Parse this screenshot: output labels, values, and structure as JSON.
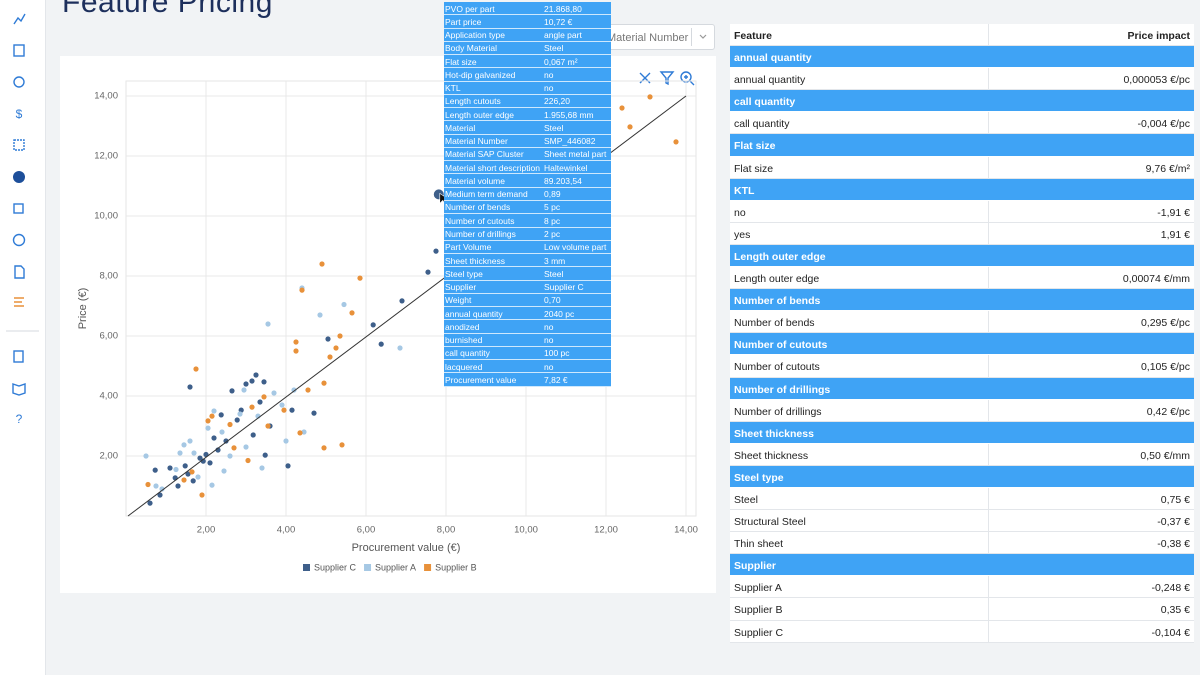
{
  "header": {
    "title": "Feature Pricing",
    "dropdown": "Material Number"
  },
  "chart_data": {
    "type": "scatter",
    "x_label": "Procurement value  (€)",
    "y_label": "Price (€)",
    "xlim": [
      0,
      14.25
    ],
    "ylim": [
      0,
      14.5
    ],
    "grid": true,
    "legend": "bottom",
    "xticks": [
      {
        "value": 2,
        "label": "2,00"
      },
      {
        "value": 4,
        "label": "4,00"
      },
      {
        "value": 6,
        "label": "6,00"
      },
      {
        "value": 8,
        "label": "8,00"
      },
      {
        "value": 10,
        "label": "10,00"
      },
      {
        "value": 12,
        "label": "12,00"
      },
      {
        "value": 14,
        "label": "14,00"
      }
    ],
    "yticks": [
      {
        "value": 2,
        "label": "2,00"
      },
      {
        "value": 4,
        "label": "4,00"
      },
      {
        "value": 6,
        "label": "6,00"
      },
      {
        "value": 8,
        "label": "8,00"
      },
      {
        "value": 10,
        "label": "10,00"
      },
      {
        "value": 12,
        "label": "12,00"
      },
      {
        "value": 14,
        "label": "14,00"
      }
    ],
    "fit_line": {
      "x": [
        0.05,
        14
      ],
      "y": [
        0,
        14
      ],
      "color": "#333333"
    },
    "series": [
      {
        "name": "Supplier C",
        "color": "#3e5f8a",
        "x": [
          7.82,
          7.75,
          7.55,
          6.9,
          6.38,
          6.18,
          1.6,
          3.25,
          3.15,
          3.0,
          3.45,
          2.65,
          2.88,
          2.38,
          1.85,
          1.93,
          1.23,
          0.85,
          0.6,
          0.73,
          1.48,
          1.68,
          2.1,
          2.5,
          2.78,
          3.18,
          3.48,
          4.05,
          4.15,
          4.7,
          1.3,
          1.55,
          2.3,
          2.0,
          3.6,
          1.1,
          2.2,
          3.35,
          5.05
        ],
        "values": [
          10.72,
          8.83,
          8.13,
          7.17,
          5.73,
          6.37,
          4.3,
          4.7,
          4.5,
          4.4,
          4.47,
          4.17,
          3.53,
          3.37,
          1.93,
          1.83,
          1.27,
          0.7,
          0.43,
          1.53,
          1.67,
          1.17,
          1.77,
          2.5,
          3.2,
          2.7,
          2.03,
          1.67,
          3.53,
          3.43,
          1.0,
          1.4,
          2.2,
          2.05,
          3.0,
          1.6,
          2.6,
          3.8,
          5.9
        ]
      },
      {
        "name": "Supplier A",
        "color": "#a6c8e4",
        "x": [
          5.45,
          4.4,
          4.85,
          3.55,
          6.85,
          4.2,
          1.45,
          0.5,
          1.6,
          2.4,
          2.85,
          3.3,
          2.15,
          0.9,
          1.8,
          2.6,
          3.0,
          2.2,
          2.05,
          3.7,
          1.25,
          0.75,
          3.9,
          2.95,
          4.45,
          1.7,
          3.4,
          2.45,
          1.35,
          4.0
        ],
        "values": [
          7.05,
          7.6,
          6.7,
          6.4,
          5.6,
          4.2,
          2.37,
          2.0,
          2.5,
          2.8,
          3.4,
          3.33,
          1.03,
          0.9,
          1.3,
          2.0,
          2.3,
          3.5,
          2.93,
          4.1,
          1.55,
          1.0,
          3.7,
          4.2,
          2.8,
          2.1,
          1.6,
          1.5,
          2.1,
          2.5
        ]
      },
      {
        "name": "Supplier B",
        "color": "#e8913a",
        "x": [
          12.4,
          12.6,
          13.1,
          13.75,
          4.9,
          5.85,
          5.65,
          4.4,
          5.35,
          5.1,
          5.25,
          4.25,
          4.25,
          4.55,
          4.95,
          1.75,
          3.45,
          3.15,
          2.15,
          2.05,
          3.95,
          4.35,
          4.95,
          5.4,
          0.55,
          1.45,
          1.65,
          2.7,
          3.05,
          2.6,
          1.9,
          3.55
        ],
        "values": [
          13.6,
          12.97,
          13.97,
          12.47,
          8.4,
          7.93,
          6.77,
          7.53,
          6.0,
          5.3,
          5.6,
          5.8,
          5.5,
          4.2,
          4.43,
          4.9,
          3.97,
          3.63,
          3.33,
          3.17,
          3.53,
          2.77,
          2.27,
          2.37,
          1.05,
          1.2,
          1.47,
          2.27,
          1.85,
          3.05,
          0.7,
          3.0
        ]
      }
    ]
  },
  "tooltip": {
    "rows": [
      [
        "PVO per part",
        "21.868,80"
      ],
      [
        "Part price",
        "10,72 €"
      ],
      [
        "Application type",
        "angle part"
      ],
      [
        "Body Material",
        "Steel"
      ],
      [
        "Flat size",
        "0,067 m²"
      ],
      [
        "Hot-dip galvanized",
        "no"
      ],
      [
        "KTL",
        "no"
      ],
      [
        "Length cutouts",
        "226,20"
      ],
      [
        "Length outer edge",
        "1.955,68 mm"
      ],
      [
        "Material",
        "Steel"
      ],
      [
        "Material Number",
        "SMP_446082"
      ],
      [
        "Material SAP Cluster",
        "Sheet metal part"
      ],
      [
        "Material short description",
        "Haltewinkel"
      ],
      [
        "Material volume",
        "89.203,54"
      ],
      [
        "Medium term demand",
        "0,89"
      ],
      [
        "Number of bends",
        "5 pc"
      ],
      [
        "Number of cutouts",
        "8 pc"
      ],
      [
        "Number of drillings",
        "2 pc"
      ],
      [
        "Part Volume",
        "Low volume part"
      ],
      [
        "Sheet thickness",
        "3 mm"
      ],
      [
        "Steel type",
        "Steel"
      ],
      [
        "Supplier",
        "Supplier C"
      ],
      [
        "Weight",
        "0,70"
      ],
      [
        "annual quantity",
        "2040 pc"
      ],
      [
        "anodized",
        "no"
      ],
      [
        "burnished",
        "no"
      ],
      [
        "call quantity",
        "100 pc"
      ],
      [
        "lacquered",
        "no"
      ],
      [
        "Procurement value",
        "7,82 €"
      ]
    ]
  },
  "table": {
    "columns": [
      "Feature",
      "Price impact"
    ],
    "groups": [
      {
        "name": "annual quantity",
        "rows": [
          [
            "annual quantity",
            "0,000053 €/pc"
          ]
        ]
      },
      {
        "name": "call quantity",
        "rows": [
          [
            "call quantity",
            "-0,004 €/pc"
          ]
        ]
      },
      {
        "name": "Flat size",
        "rows": [
          [
            "Flat size",
            "9,76 €/m²"
          ]
        ]
      },
      {
        "name": "KTL",
        "rows": [
          [
            "no",
            "-1,91 €"
          ],
          [
            "yes",
            "1,91 €"
          ]
        ]
      },
      {
        "name": "Length outer edge",
        "rows": [
          [
            "Length outer edge",
            "0,00074 €/mm"
          ]
        ]
      },
      {
        "name": "Number of bends",
        "rows": [
          [
            "Number of bends",
            "0,295 €/pc"
          ]
        ]
      },
      {
        "name": "Number of cutouts",
        "rows": [
          [
            "Number of cutouts",
            "0,105 €/pc"
          ]
        ]
      },
      {
        "name": "Number of drillings",
        "rows": [
          [
            "Number of drillings",
            "0,42 €/pc"
          ]
        ]
      },
      {
        "name": "Sheet thickness",
        "rows": [
          [
            "Sheet thickness",
            "0,50 €/mm"
          ]
        ]
      },
      {
        "name": "Steel type",
        "rows": [
          [
            "Steel",
            "0,75 €"
          ],
          [
            "Structural Steel",
            "-0,37 €"
          ],
          [
            "Thin sheet",
            "-0,38 €"
          ]
        ]
      },
      {
        "name": "Supplier",
        "rows": [
          [
            "Supplier A",
            "-0,248 €"
          ],
          [
            "Supplier B",
            "0,35 €"
          ],
          [
            "Supplier C",
            "-0,104 €"
          ]
        ]
      }
    ]
  }
}
